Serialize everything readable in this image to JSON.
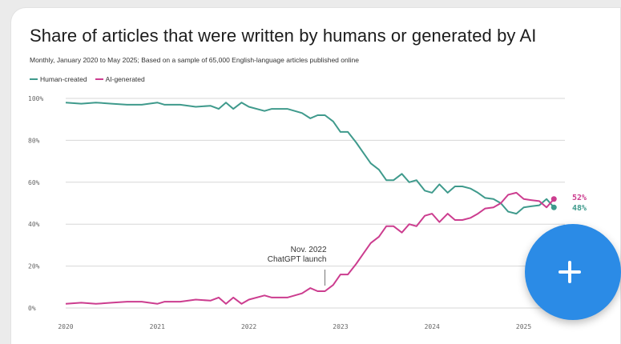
{
  "fab": {
    "icon": "plus-icon"
  },
  "colors": {
    "human": "#3f9a8c",
    "ai": "#cc3d8f",
    "grid": "#d7d7d7",
    "fab": "#2b8be6"
  },
  "chart_data": {
    "type": "line",
    "title": "Share of articles that were written by humans or generated by AI",
    "subtitle": "Monthly, January 2020 to May 2025; Based on a sample of 65,000 English-language articles published online",
    "xlabel": "",
    "ylabel": "",
    "xlim": [
      2020.0,
      2025.45
    ],
    "ylim": [
      0,
      100
    ],
    "x_ticks": [
      {
        "value": 2020,
        "label": "2020"
      },
      {
        "value": 2021,
        "label": "2021"
      },
      {
        "value": 2022,
        "label": "2022"
      },
      {
        "value": 2023,
        "label": "2023"
      },
      {
        "value": 2024,
        "label": "2024"
      },
      {
        "value": 2025,
        "label": "2025"
      }
    ],
    "y_ticks": [
      {
        "value": 0,
        "label": "0%"
      },
      {
        "value": 20,
        "label": "20%"
      },
      {
        "value": 40,
        "label": "40%"
      },
      {
        "value": 60,
        "label": "60%"
      },
      {
        "value": 80,
        "label": "80%"
      },
      {
        "value": 100,
        "label": "100%"
      }
    ],
    "grid": true,
    "legend": "top-left",
    "series": [
      {
        "name": "Human-created",
        "color": "#3f9a8c",
        "points": [
          [
            2020.0,
            98
          ],
          [
            2020.17,
            97.5
          ],
          [
            2020.33,
            98
          ],
          [
            2020.5,
            97.5
          ],
          [
            2020.67,
            97
          ],
          [
            2020.83,
            97
          ],
          [
            2021.0,
            98
          ],
          [
            2021.08,
            97
          ],
          [
            2021.25,
            97
          ],
          [
            2021.42,
            96
          ],
          [
            2021.58,
            96.5
          ],
          [
            2021.67,
            95
          ],
          [
            2021.75,
            98
          ],
          [
            2021.83,
            95
          ],
          [
            2021.92,
            98
          ],
          [
            2022.0,
            96
          ],
          [
            2022.17,
            94
          ],
          [
            2022.25,
            95
          ],
          [
            2022.42,
            95
          ],
          [
            2022.5,
            94
          ],
          [
            2022.58,
            93
          ],
          [
            2022.67,
            90.5
          ],
          [
            2022.75,
            92
          ],
          [
            2022.83,
            92
          ],
          [
            2022.92,
            89
          ],
          [
            2023.0,
            84
          ],
          [
            2023.08,
            84
          ],
          [
            2023.17,
            79
          ],
          [
            2023.25,
            74
          ],
          [
            2023.33,
            69
          ],
          [
            2023.42,
            66
          ],
          [
            2023.5,
            61
          ],
          [
            2023.58,
            61
          ],
          [
            2023.67,
            64
          ],
          [
            2023.75,
            60
          ],
          [
            2023.83,
            61
          ],
          [
            2023.92,
            56
          ],
          [
            2024.0,
            55
          ],
          [
            2024.08,
            59
          ],
          [
            2024.17,
            55
          ],
          [
            2024.25,
            58
          ],
          [
            2024.33,
            58
          ],
          [
            2024.42,
            57
          ],
          [
            2024.5,
            55
          ],
          [
            2024.58,
            52.5
          ],
          [
            2024.67,
            52
          ],
          [
            2024.75,
            50
          ],
          [
            2024.83,
            46
          ],
          [
            2024.92,
            45
          ],
          [
            2025.0,
            48
          ],
          [
            2025.08,
            48.5
          ],
          [
            2025.17,
            49
          ],
          [
            2025.25,
            52
          ],
          [
            2025.33,
            48
          ]
        ]
      },
      {
        "name": "AI-generated",
        "color": "#cc3d8f",
        "points": [
          [
            2020.0,
            2
          ],
          [
            2020.17,
            2.5
          ],
          [
            2020.33,
            2
          ],
          [
            2020.5,
            2.5
          ],
          [
            2020.67,
            3
          ],
          [
            2020.83,
            3
          ],
          [
            2021.0,
            2
          ],
          [
            2021.08,
            3
          ],
          [
            2021.25,
            3
          ],
          [
            2021.42,
            4
          ],
          [
            2021.58,
            3.5
          ],
          [
            2021.67,
            5
          ],
          [
            2021.75,
            2
          ],
          [
            2021.83,
            5
          ],
          [
            2021.92,
            2
          ],
          [
            2022.0,
            4
          ],
          [
            2022.17,
            6
          ],
          [
            2022.25,
            5
          ],
          [
            2022.42,
            5
          ],
          [
            2022.5,
            6
          ],
          [
            2022.58,
            7
          ],
          [
            2022.67,
            9.5
          ],
          [
            2022.75,
            8
          ],
          [
            2022.83,
            8
          ],
          [
            2022.92,
            11
          ],
          [
            2023.0,
            16
          ],
          [
            2023.08,
            16
          ],
          [
            2023.17,
            21
          ],
          [
            2023.25,
            26
          ],
          [
            2023.33,
            31
          ],
          [
            2023.42,
            34
          ],
          [
            2023.5,
            39
          ],
          [
            2023.58,
            39
          ],
          [
            2023.67,
            36
          ],
          [
            2023.75,
            40
          ],
          [
            2023.83,
            39
          ],
          [
            2023.92,
            44
          ],
          [
            2024.0,
            45
          ],
          [
            2024.08,
            41
          ],
          [
            2024.17,
            45
          ],
          [
            2024.25,
            42
          ],
          [
            2024.33,
            42
          ],
          [
            2024.42,
            43
          ],
          [
            2024.5,
            45
          ],
          [
            2024.58,
            47.5
          ],
          [
            2024.67,
            48
          ],
          [
            2024.75,
            50
          ],
          [
            2024.83,
            54
          ],
          [
            2024.92,
            55
          ],
          [
            2025.0,
            52
          ],
          [
            2025.08,
            51.5
          ],
          [
            2025.17,
            51
          ],
          [
            2025.25,
            48
          ],
          [
            2025.33,
            52
          ]
        ]
      }
    ],
    "end_labels": [
      {
        "series": "AI-generated",
        "text": "52%"
      },
      {
        "series": "Human-created",
        "text": "48%"
      }
    ],
    "annotations": [
      {
        "x": 2022.83,
        "y": 10,
        "text_lines": [
          "Nov. 2022",
          "ChatGPT launch"
        ]
      }
    ]
  }
}
